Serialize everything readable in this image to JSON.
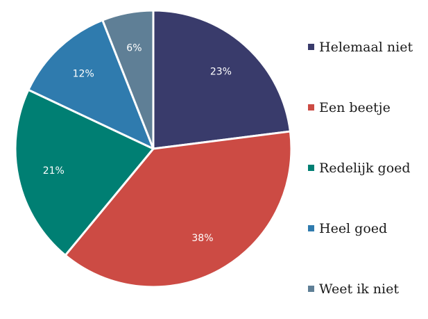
{
  "chart_data": {
    "type": "pie",
    "categories": [
      "Helemaal niet",
      "Een beetje",
      "Redelijk goed",
      "Heel goed",
      "Weet ik niet"
    ],
    "values": [
      23,
      38,
      21,
      12,
      6
    ],
    "labels": [
      "23%",
      "38%",
      "21%",
      "12%",
      "6%"
    ],
    "colors": [
      "#393b6b",
      "#cc4b44",
      "#007f73",
      "#2f7bae",
      "#5f7f96"
    ],
    "start_angle_deg": 0,
    "direction": "clockwise",
    "legend_position": "right"
  }
}
